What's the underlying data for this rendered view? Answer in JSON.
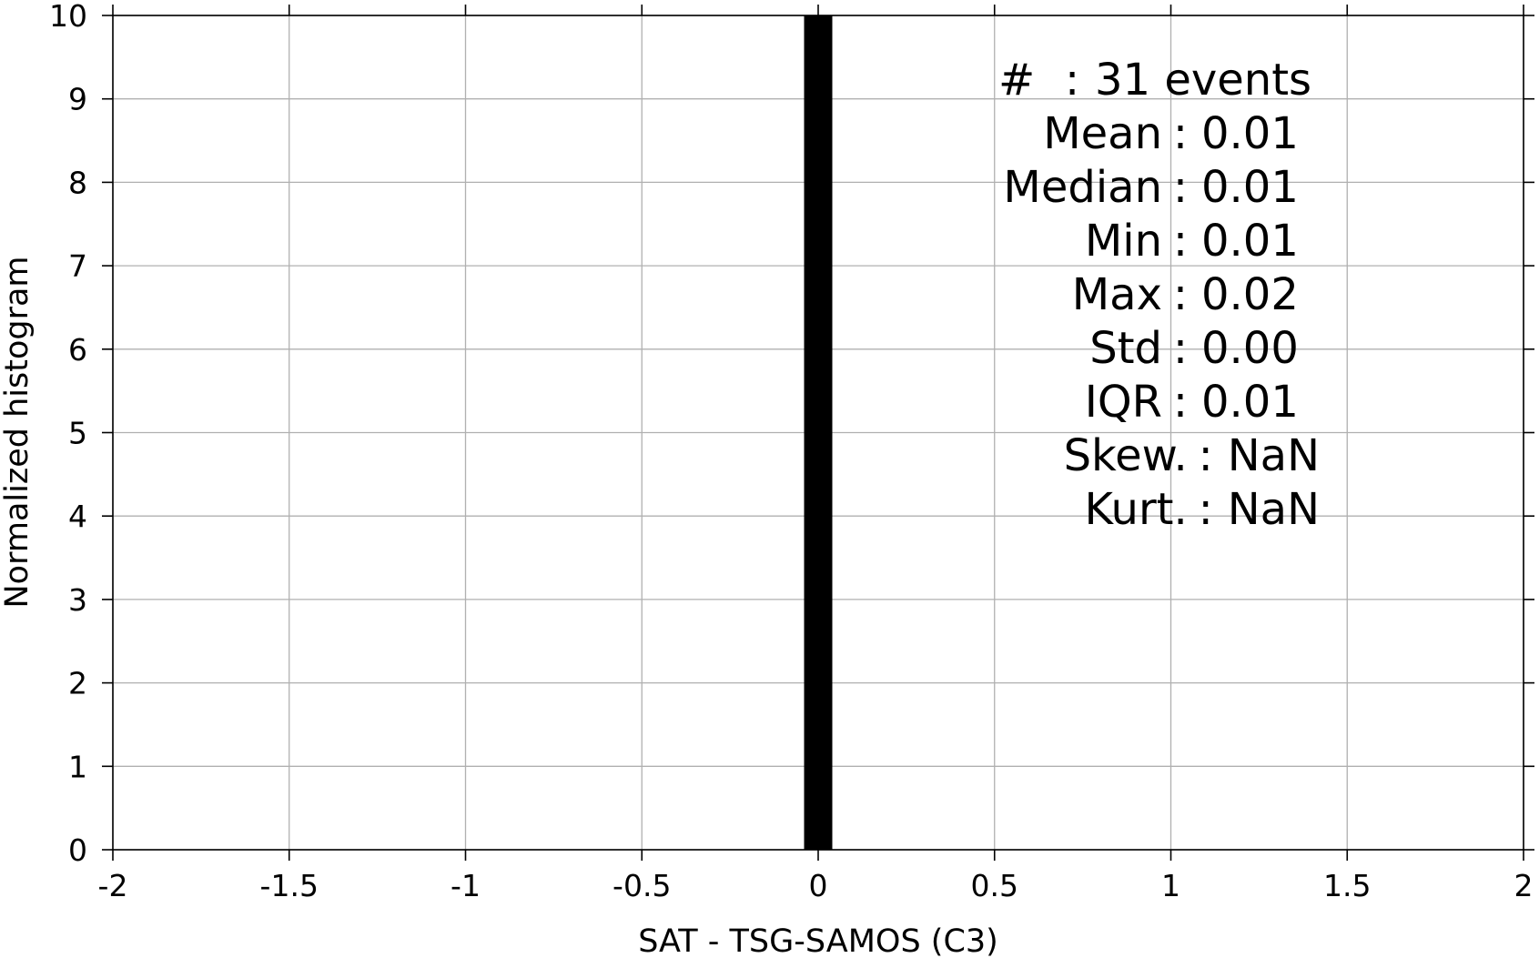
{
  "chart_data": {
    "type": "bar",
    "xlabel": "SAT - TSG-SAMOS (C3)",
    "ylabel": "Normalized histogram",
    "xlim": [
      -2,
      2
    ],
    "ylim": [
      0,
      10
    ],
    "x_ticks": [
      {
        "value": -2,
        "label": "-2"
      },
      {
        "value": -1.5,
        "label": "-1.5"
      },
      {
        "value": -1,
        "label": "-1"
      },
      {
        "value": -0.5,
        "label": "-0.5"
      },
      {
        "value": 0,
        "label": "0"
      },
      {
        "value": 0.5,
        "label": "0.5"
      },
      {
        "value": 1,
        "label": "1"
      },
      {
        "value": 1.5,
        "label": "1.5"
      },
      {
        "value": 2,
        "label": "2"
      }
    ],
    "y_ticks": [
      {
        "value": 0,
        "label": "0"
      },
      {
        "value": 1,
        "label": "1"
      },
      {
        "value": 2,
        "label": "2"
      },
      {
        "value": 3,
        "label": "3"
      },
      {
        "value": 4,
        "label": "4"
      },
      {
        "value": 5,
        "label": "5"
      },
      {
        "value": 6,
        "label": "6"
      },
      {
        "value": 7,
        "label": "7"
      },
      {
        "value": 8,
        "label": "8"
      },
      {
        "value": 9,
        "label": "9"
      },
      {
        "value": 10,
        "label": "10"
      }
    ],
    "bins": [
      {
        "x0": -0.04,
        "x1": 0.04,
        "value": 10
      }
    ],
    "bar_color": "#000000",
    "grid": true,
    "stats": [
      {
        "name": "#",
        "value": "31 events",
        "align": "hash"
      },
      {
        "name": "Mean",
        "value": "0.01",
        "align": "colon"
      },
      {
        "name": "Median",
        "value": "0.01",
        "align": "colon"
      },
      {
        "name": "Min",
        "value": "0.01",
        "align": "colon"
      },
      {
        "name": "Max",
        "value": "0.02",
        "align": "colon"
      },
      {
        "name": "Std",
        "value": "0.00",
        "align": "colon"
      },
      {
        "name": "IQR",
        "value": "0.01",
        "align": "colon"
      },
      {
        "name": "Skew.",
        "value": "NaN",
        "align": "right"
      },
      {
        "name": "Kurt.",
        "value": "NaN",
        "align": "right"
      }
    ]
  }
}
